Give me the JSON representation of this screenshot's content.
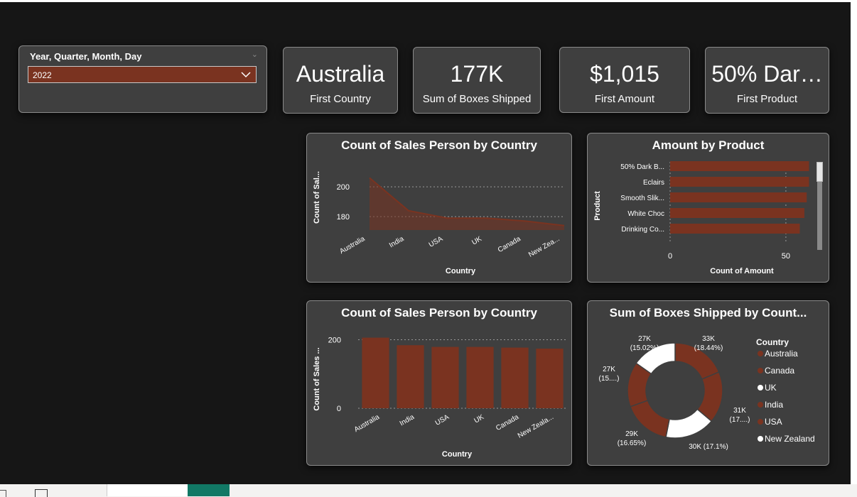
{
  "slicer": {
    "title": "Year, Quarter, Month, Day",
    "selected": "2022"
  },
  "kpis": [
    {
      "value": "Australia",
      "label": "First Country"
    },
    {
      "value": "177K",
      "label": "Sum of Boxes Shipped"
    },
    {
      "value": "$1,015",
      "label": "First Amount"
    },
    {
      "value": "50% Dar…",
      "label": "First Product"
    }
  ],
  "colors": {
    "accent": "#7a3320",
    "white": "#ffffff",
    "card": "#3f3f3f",
    "background": "#161616"
  },
  "chart_data": [
    {
      "type": "area",
      "title": "Count of Sales Person by Country",
      "xlabel": "Country",
      "ylabel": "Count of Sal...",
      "categories": [
        "Australia",
        "India",
        "USA",
        "UK",
        "Canada",
        "New Zea..."
      ],
      "values": [
        206,
        184,
        179,
        179,
        177,
        174
      ],
      "yticks": [
        180,
        200
      ],
      "ylim": [
        171,
        211
      ],
      "grid": true
    },
    {
      "type": "bar",
      "orientation": "horizontal",
      "title": "Amount by Product",
      "xlabel": "Count of Amount",
      "ylabel": "Product",
      "categories": [
        "50% Dark B...",
        "Eclairs",
        "Smooth Slik...",
        "White Choc",
        "Drinking Co..."
      ],
      "values": [
        60,
        60,
        59,
        58,
        56
      ],
      "xticks": [
        0,
        50
      ],
      "xlim": [
        0,
        62
      ],
      "grid": true
    },
    {
      "type": "bar",
      "title": "Count of Sales Person by Country",
      "xlabel": "Country",
      "ylabel": "Count of Sales ...",
      "categories": [
        "Australia",
        "India",
        "USA",
        "UK",
        "Canada",
        "New Zeala..."
      ],
      "values": [
        206,
        184,
        179,
        179,
        177,
        174
      ],
      "yticks": [
        0,
        200
      ],
      "ylim": [
        0,
        230
      ],
      "grid": true
    },
    {
      "type": "pie",
      "style": "donut",
      "title": "Sum of Boxes Shipped by Count...",
      "legend_title": "Country",
      "legend_position": "right",
      "slices": [
        {
          "name": "Australia",
          "value": 33,
          "label": "33K",
          "pct": "(18.44%)",
          "color": "#7a3320"
        },
        {
          "name": "Canada",
          "value": 31,
          "label": "31K",
          "pct": "(17....)",
          "color": "#7a3320"
        },
        {
          "name": "UK",
          "value": 30,
          "label": "30K (17.1%)",
          "pct": "",
          "color": "#ffffff"
        },
        {
          "name": "India",
          "value": 29,
          "label": "29K",
          "pct": "(16.65%)",
          "color": "#7a3320"
        },
        {
          "name": "USA",
          "value": 27,
          "label": "27K",
          "pct": "(15....)",
          "color": "#7a3320"
        },
        {
          "name": "New Zealand",
          "value": 27,
          "label": "27K",
          "pct": "(15.02%)",
          "color": "#ffffff"
        }
      ]
    }
  ]
}
